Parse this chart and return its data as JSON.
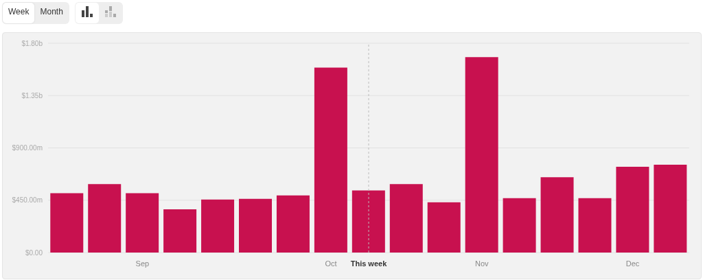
{
  "chart_data": {
    "type": "bar",
    "categories": [
      null,
      null,
      "Sep",
      null,
      null,
      null,
      null,
      "Oct",
      "This week",
      null,
      null,
      "Nov",
      null,
      null,
      null,
      "Dec",
      null
    ],
    "values": [
      510000000,
      588000000,
      510000000,
      372000000,
      456000000,
      462000000,
      492000000,
      1590000000,
      534000000,
      588000000,
      432000000,
      1680000000,
      468000000,
      648000000,
      468000000,
      738000000,
      756000000
    ],
    "color": "#c8114f",
    "ylim": [
      0,
      1800000000
    ],
    "yticks": [
      {
        "value": 0,
        "label": "$0.00"
      },
      {
        "value": 450000000,
        "label": "$450.00m"
      },
      {
        "value": 900000000,
        "label": "$900.00m"
      },
      {
        "value": 1350000000,
        "label": "$1.35b"
      },
      {
        "value": 1800000000,
        "label": "$1.80b"
      }
    ],
    "grid": "y",
    "ref_lines": [
      {
        "axis": "x",
        "value": "This week",
        "color": "#bbbbbb",
        "line_style": "dashed"
      }
    ],
    "annotations": [
      "Week",
      "Month"
    ],
    "legend": false
  }
}
